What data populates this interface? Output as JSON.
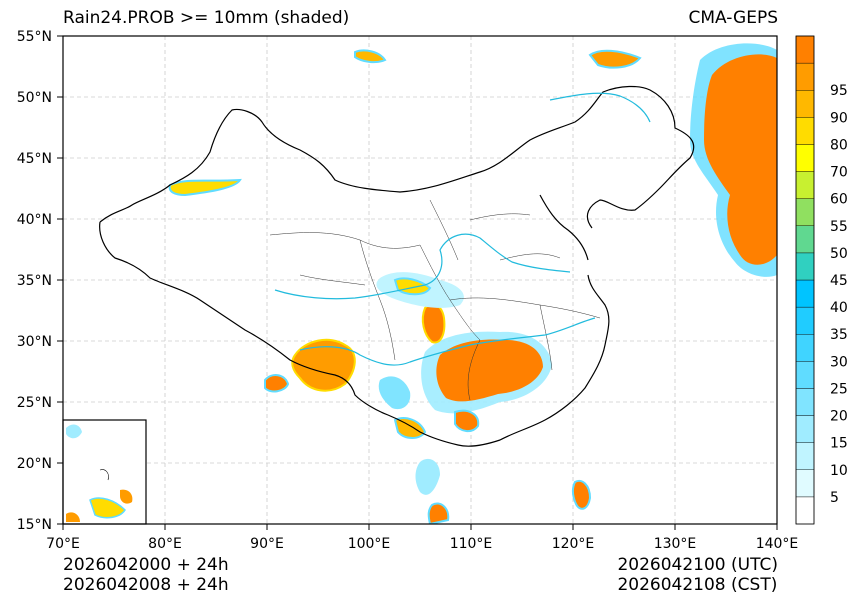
{
  "header": {
    "title_left": "Rain24.PROB >= 10mm (shaded)",
    "title_right": "CMA-GEPS"
  },
  "map": {
    "lon_range": [
      70,
      140
    ],
    "lat_range": [
      15,
      55
    ],
    "lon_ticks": [
      "70°E",
      "80°E",
      "90°E",
      "100°E",
      "110°E",
      "120°E",
      "130°E",
      "140°E"
    ],
    "lat_ticks": [
      "15°N",
      "20°N",
      "25°N",
      "30°N",
      "35°N",
      "40°N",
      "45°N",
      "50°N",
      "55°N"
    ],
    "gridlines": true,
    "inset": "South China Sea"
  },
  "colorbar": {
    "labels": [
      "5",
      "10",
      "15",
      "20",
      "25",
      "30",
      "35",
      "40",
      "45",
      "50",
      "55",
      "60",
      "70",
      "80",
      "90",
      "95"
    ],
    "colors": [
      "#ffffff",
      "#e0fbff",
      "#c0f4ff",
      "#a0ecff",
      "#80e4ff",
      "#60dcff",
      "#40d4ff",
      "#20ccff",
      "#00c4ff",
      "#30d0c0",
      "#60d890",
      "#90e060",
      "#c8f030",
      "#ffff00",
      "#ffdc00",
      "#ffb800",
      "#ff9c00",
      "#ff8000"
    ]
  },
  "footer": {
    "init_utc": "2026042000 + 24h",
    "init_cst": "2026042008 + 24h",
    "valid_utc": "2026042100 (UTC)",
    "valid_cst": "2026042108 (CST)"
  },
  "colors": {
    "high_prob": "#ff8000",
    "river": "#22bbdd",
    "border": "#000000",
    "grid": "#cccccc"
  }
}
